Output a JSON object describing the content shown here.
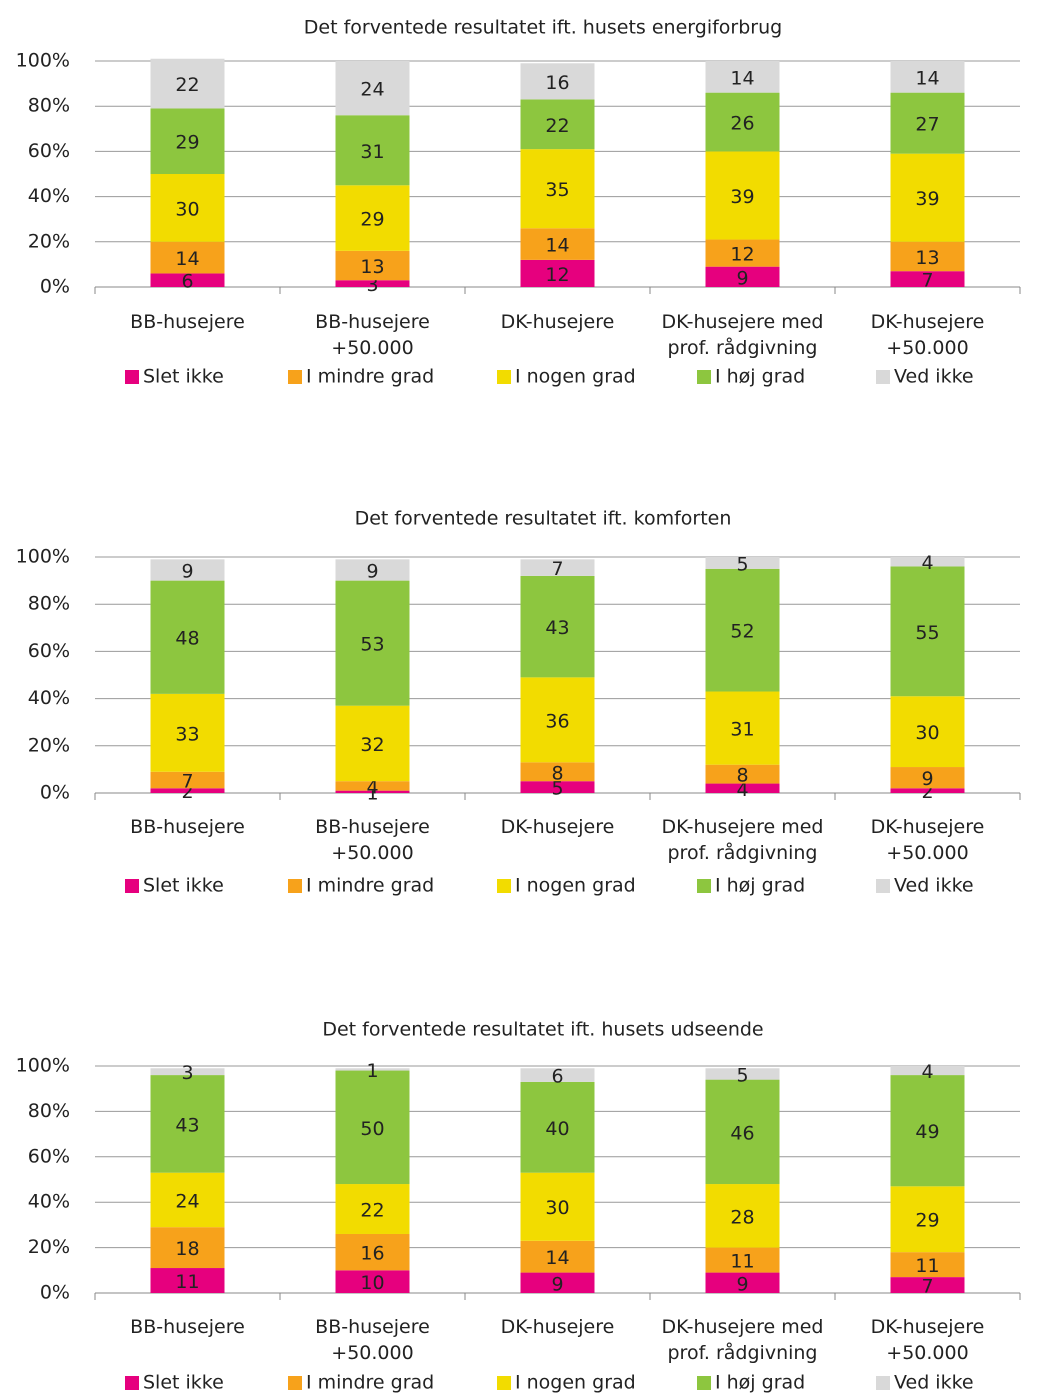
{
  "chart_data": [
    {
      "type": "stacked_bar",
      "title": "Det forventede resultatet ift. husets energiforbrug",
      "categories": [
        "BB-husejere",
        "BB-husejere +50.000",
        "DK-husejere",
        "DK-husejere med prof. rådgivning",
        "DK-husejere +50.000"
      ],
      "series": [
        {
          "name": "Slet ikke",
          "color": "#e6007e",
          "values": [
            6,
            3,
            12,
            9,
            7
          ]
        },
        {
          "name": "I mindre grad",
          "color": "#f7a21b",
          "values": [
            14,
            13,
            14,
            12,
            13
          ]
        },
        {
          "name": "I nogen grad",
          "color": "#f2dc00",
          "values": [
            30,
            29,
            35,
            39,
            39
          ]
        },
        {
          "name": "I høj grad",
          "color": "#8dc63f",
          "values": [
            29,
            31,
            22,
            26,
            27
          ]
        },
        {
          "name": "Ved ikke",
          "color": "#d9d9d9",
          "values": [
            22,
            24,
            16,
            14,
            14
          ]
        }
      ],
      "ylim": [
        0,
        100
      ],
      "yticks": [
        {
          "value": 0,
          "label": "0%"
        },
        {
          "value": 20,
          "label": "20%"
        },
        {
          "value": 40,
          "label": "40%"
        },
        {
          "value": 60,
          "label": "60%"
        },
        {
          "value": 80,
          "label": "80%"
        },
        {
          "value": 100,
          "label": "100%"
        }
      ],
      "grid": true,
      "legend": "bottom"
    },
    {
      "type": "stacked_bar",
      "title": "Det forventede resultatet ift. komforten",
      "categories": [
        "BB-husejere",
        "BB-husejere +50.000",
        "DK-husejere",
        "DK-husejere med prof. rådgivning",
        "DK-husejere +50.000"
      ],
      "series": [
        {
          "name": "Slet ikke",
          "color": "#e6007e",
          "values": [
            2,
            1,
            5,
            4,
            2
          ]
        },
        {
          "name": "I mindre grad",
          "color": "#f7a21b",
          "values": [
            7,
            4,
            8,
            8,
            9
          ]
        },
        {
          "name": "I nogen grad",
          "color": "#f2dc00",
          "values": [
            33,
            32,
            36,
            31,
            30
          ]
        },
        {
          "name": "I høj grad",
          "color": "#8dc63f",
          "values": [
            48,
            53,
            43,
            52,
            55
          ]
        },
        {
          "name": "Ved ikke",
          "color": "#d9d9d9",
          "values": [
            9,
            9,
            7,
            5,
            4
          ]
        }
      ],
      "ylim": [
        0,
        100
      ],
      "yticks": [
        {
          "value": 0,
          "label": "0%"
        },
        {
          "value": 20,
          "label": "20%"
        },
        {
          "value": 40,
          "label": "40%"
        },
        {
          "value": 60,
          "label": "60%"
        },
        {
          "value": 80,
          "label": "80%"
        },
        {
          "value": 100,
          "label": "100%"
        }
      ],
      "grid": true,
      "legend": "bottom"
    },
    {
      "type": "stacked_bar",
      "title": "Det forventede resultatet ift. husets udseende",
      "categories": [
        "BB-husejere",
        "BB-husejere +50.000",
        "DK-husejere",
        "DK-husejere med prof. rådgivning",
        "DK-husejere +50.000"
      ],
      "series": [
        {
          "name": "Slet ikke",
          "color": "#e6007e",
          "values": [
            11,
            10,
            9,
            9,
            7
          ]
        },
        {
          "name": "I mindre grad",
          "color": "#f7a21b",
          "values": [
            18,
            16,
            14,
            11,
            11
          ]
        },
        {
          "name": "I nogen grad",
          "color": "#f2dc00",
          "values": [
            24,
            22,
            30,
            28,
            29
          ]
        },
        {
          "name": "I høj grad",
          "color": "#8dc63f",
          "values": [
            43,
            50,
            40,
            46,
            49
          ]
        },
        {
          "name": "Ved ikke",
          "color": "#d9d9d9",
          "values": [
            3,
            1,
            6,
            5,
            4
          ]
        }
      ],
      "ylim": [
        0,
        100
      ],
      "yticks": [
        {
          "value": 0,
          "label": "0%"
        },
        {
          "value": 20,
          "label": "20%"
        },
        {
          "value": 40,
          "label": "40%"
        },
        {
          "value": 60,
          "label": "60%"
        },
        {
          "value": 80,
          "label": "80%"
        },
        {
          "value": 100,
          "label": "100%"
        }
      ],
      "grid": true,
      "legend": "bottom"
    }
  ]
}
